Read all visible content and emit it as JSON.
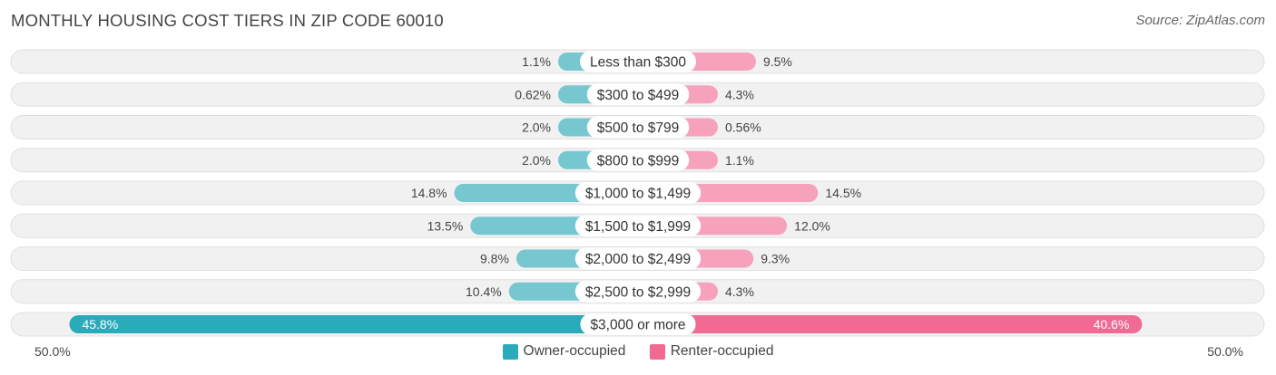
{
  "title": "MONTHLY HOUSING COST TIERS IN ZIP CODE 60010",
  "source": "Source: ZipAtlas.com",
  "axis": {
    "left_label": "50.0%",
    "right_label": "50.0%"
  },
  "legend": {
    "owner_label": "Owner-occupied",
    "renter_label": "Renter-occupied"
  },
  "colors": {
    "owner": "#76c7d0",
    "owner_strong": "#2aabba",
    "renter": "#f7a2bd",
    "renter_strong": "#f06a94"
  },
  "chart_data": {
    "type": "bar",
    "orientation": "horizontal-diverging",
    "max": 50.0,
    "categories": [
      "Less than $300",
      "$300 to $499",
      "$500 to $799",
      "$800 to $999",
      "$1,000 to $1,499",
      "$1,500 to $1,999",
      "$2,000 to $2,499",
      "$2,500 to $2,999",
      "$3,000 or more"
    ],
    "series": [
      {
        "name": "Owner-occupied",
        "values": [
          1.1,
          0.62,
          2.0,
          2.0,
          14.8,
          13.5,
          9.8,
          10.4,
          45.8
        ],
        "labels": [
          "1.1%",
          "0.62%",
          "2.0%",
          "2.0%",
          "14.8%",
          "13.5%",
          "9.8%",
          "10.4%",
          "45.8%"
        ]
      },
      {
        "name": "Renter-occupied",
        "values": [
          9.5,
          4.3,
          0.56,
          1.1,
          14.5,
          12.0,
          9.3,
          4.3,
          40.6
        ],
        "labels": [
          "9.5%",
          "4.3%",
          "0.56%",
          "1.1%",
          "14.5%",
          "12.0%",
          "9.3%",
          "4.3%",
          "40.6%"
        ]
      }
    ]
  }
}
